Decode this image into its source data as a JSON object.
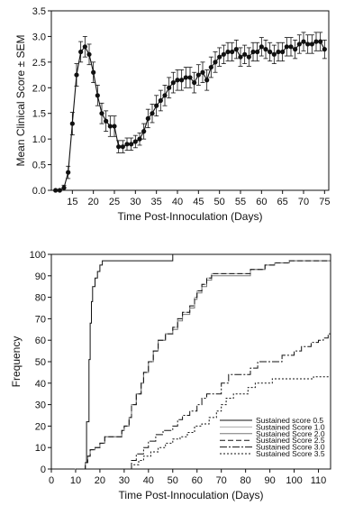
{
  "chart_data": [
    {
      "type": "line",
      "title": "",
      "xlabel": "Time Post-Innoculation (Days)",
      "ylabel": "Mean Clinical Score ± SEM",
      "xlim": [
        10,
        76
      ],
      "ylim": [
        0,
        3.5
      ],
      "xticks": [
        15,
        20,
        25,
        30,
        35,
        40,
        45,
        50,
        55,
        60,
        65,
        70,
        75
      ],
      "yticks": [
        0.0,
        0.5,
        1.0,
        1.5,
        2.0,
        2.5,
        3.0,
        3.5
      ],
      "ytick_labels": [
        "0.0",
        "0.5",
        "1.0",
        "1.5",
        "2.0",
        "2.5",
        "3.0",
        "3.5"
      ],
      "grid": false,
      "legend": "none",
      "series": [
        {
          "x": [
            11,
            12,
            13,
            14,
            15,
            16,
            17,
            18,
            19,
            20,
            21,
            22,
            23,
            24,
            25,
            26,
            27,
            28,
            29,
            30,
            31,
            32,
            33,
            34,
            35,
            36,
            37,
            38,
            39,
            40,
            41,
            42,
            43,
            44,
            45,
            46,
            47,
            48,
            49,
            50,
            51,
            52,
            53,
            54,
            55,
            56,
            57,
            58,
            59,
            60,
            61,
            62,
            63,
            64,
            65,
            66,
            67,
            68,
            69,
            70,
            71,
            72,
            73,
            74,
            75
          ],
          "y": [
            0.0,
            0.0,
            0.05,
            0.35,
            1.3,
            2.25,
            2.7,
            2.8,
            2.65,
            2.3,
            1.85,
            1.5,
            1.35,
            1.25,
            1.25,
            0.85,
            0.85,
            0.9,
            0.9,
            0.95,
            1.0,
            1.15,
            1.4,
            1.5,
            1.65,
            1.75,
            1.85,
            2.0,
            2.1,
            2.15,
            2.15,
            2.2,
            2.2,
            2.1,
            2.25,
            2.3,
            2.15,
            2.4,
            2.5,
            2.6,
            2.65,
            2.7,
            2.7,
            2.75,
            2.6,
            2.65,
            2.6,
            2.7,
            2.7,
            2.8,
            2.75,
            2.7,
            2.65,
            2.7,
            2.7,
            2.8,
            2.8,
            2.75,
            2.85,
            2.9,
            2.85,
            2.85,
            2.9,
            2.9,
            2.75
          ],
          "sem": [
            0.0,
            0.0,
            0.05,
            0.12,
            0.22,
            0.22,
            0.2,
            0.2,
            0.2,
            0.2,
            0.2,
            0.2,
            0.2,
            0.2,
            0.2,
            0.12,
            0.12,
            0.12,
            0.12,
            0.12,
            0.12,
            0.15,
            0.18,
            0.18,
            0.2,
            0.2,
            0.2,
            0.2,
            0.2,
            0.2,
            0.2,
            0.2,
            0.2,
            0.2,
            0.2,
            0.2,
            0.2,
            0.2,
            0.2,
            0.18,
            0.18,
            0.18,
            0.18,
            0.18,
            0.18,
            0.18,
            0.18,
            0.18,
            0.18,
            0.18,
            0.18,
            0.18,
            0.18,
            0.18,
            0.18,
            0.18,
            0.18,
            0.18,
            0.18,
            0.18,
            0.18,
            0.18,
            0.18,
            0.18,
            0.18
          ]
        }
      ]
    },
    {
      "type": "line",
      "title": "",
      "xlabel": "Time Post-Innoculation (Days)",
      "ylabel": "Frequency",
      "xlim": [
        0,
        115
      ],
      "ylim": [
        0,
        100
      ],
      "xticks": [
        0,
        10,
        20,
        30,
        40,
        50,
        60,
        70,
        80,
        90,
        100,
        110
      ],
      "yticks": [
        0,
        10,
        20,
        30,
        40,
        50,
        60,
        70,
        80,
        90,
        100
      ],
      "grid": false,
      "legend": "bottom-right",
      "series": [
        {
          "name": "Sustained score 0.5",
          "color": "#111111",
          "dash": "",
          "points": [
            [
              0,
              0
            ],
            [
              13,
              0
            ],
            [
              14,
              3
            ],
            [
              14.5,
              22
            ],
            [
              15,
              22
            ],
            [
              15.5,
              51
            ],
            [
              16,
              68
            ],
            [
              16.5,
              78
            ],
            [
              17,
              85
            ],
            [
              18,
              89
            ],
            [
              19,
              92
            ],
            [
              20,
              95
            ],
            [
              21,
              97
            ],
            [
              49,
              97
            ],
            [
              50,
              100
            ],
            [
              115,
              100
            ]
          ]
        },
        {
          "name": "Sustained Score 1.0",
          "color": "#aaaaaa",
          "dash": "",
          "points": [
            [
              0,
              0
            ],
            [
              13,
              0
            ],
            [
              14,
              3
            ],
            [
              15,
              6
            ],
            [
              16,
              9
            ],
            [
              18,
              10
            ],
            [
              20,
              12
            ],
            [
              22,
              15
            ],
            [
              27,
              15
            ],
            [
              29,
              18
            ],
            [
              30,
              20
            ],
            [
              32,
              24
            ],
            [
              33,
              30
            ],
            [
              35,
              35
            ],
            [
              37,
              40
            ],
            [
              38,
              45
            ],
            [
              40,
              50
            ],
            [
              42,
              55
            ],
            [
              44,
              60
            ],
            [
              47,
              63
            ],
            [
              50,
              66
            ],
            [
              52,
              70
            ],
            [
              54,
              73
            ],
            [
              57,
              76
            ],
            [
              59,
              80
            ],
            [
              60,
              83
            ],
            [
              62,
              86
            ],
            [
              64,
              89
            ],
            [
              66,
              91
            ],
            [
              80,
              91
            ],
            [
              82,
              93
            ],
            [
              88,
              95
            ],
            [
              92,
              96
            ],
            [
              98,
              97
            ],
            [
              115,
              97
            ]
          ]
        },
        {
          "name": "Sustained Score 2.0",
          "color": "#777777",
          "dash": "",
          "points": [
            [
              0,
              0
            ],
            [
              13,
              0
            ],
            [
              14,
              3
            ],
            [
              15,
              6
            ],
            [
              16,
              9
            ],
            [
              18,
              10
            ],
            [
              20,
              12
            ],
            [
              22,
              15
            ],
            [
              27,
              15
            ],
            [
              29,
              18
            ],
            [
              30,
              20
            ],
            [
              32,
              24
            ],
            [
              33,
              30
            ],
            [
              35,
              35
            ],
            [
              37,
              40
            ],
            [
              38,
              45
            ],
            [
              40,
              50
            ],
            [
              42,
              55
            ],
            [
              44,
              60
            ],
            [
              47,
              63
            ],
            [
              50,
              65
            ],
            [
              52,
              69
            ],
            [
              54,
              72
            ],
            [
              57,
              75
            ],
            [
              59,
              79
            ],
            [
              60,
              82
            ],
            [
              62,
              85
            ],
            [
              64,
              88
            ],
            [
              66,
              90
            ],
            [
              80,
              90
            ],
            [
              82,
              93
            ],
            [
              88,
              95
            ],
            [
              92,
              96
            ],
            [
              98,
              97
            ],
            [
              115,
              97
            ]
          ]
        },
        {
          "name": "Sustained Score 2.5",
          "color": "#111111",
          "dash": "6,3",
          "points": [
            [
              0,
              0
            ],
            [
              13,
              0
            ],
            [
              14,
              3
            ],
            [
              15,
              6
            ],
            [
              16,
              9
            ],
            [
              18,
              10
            ],
            [
              20,
              12
            ],
            [
              22,
              15
            ],
            [
              27,
              15
            ],
            [
              29,
              18
            ],
            [
              30,
              20
            ],
            [
              32,
              24
            ],
            [
              33,
              30
            ],
            [
              35,
              35
            ],
            [
              37,
              40
            ],
            [
              38,
              45
            ],
            [
              40,
              50
            ],
            [
              42,
              55
            ],
            [
              44,
              60
            ],
            [
              47,
              63
            ],
            [
              50,
              66
            ],
            [
              52,
              70
            ],
            [
              54,
              73
            ],
            [
              57,
              76
            ],
            [
              59,
              80
            ],
            [
              60,
              83
            ],
            [
              62,
              86
            ],
            [
              64,
              89
            ],
            [
              66,
              91
            ],
            [
              80,
              91
            ],
            [
              82,
              93
            ],
            [
              88,
              95
            ],
            [
              92,
              96
            ],
            [
              98,
              97
            ],
            [
              115,
              97
            ]
          ]
        },
        {
          "name": "Sustained Score 3.0",
          "color": "#111111",
          "dash": "8,2,2,2",
          "points": [
            [
              0,
              0
            ],
            [
              31,
              0
            ],
            [
              33,
              4
            ],
            [
              35,
              7
            ],
            [
              38,
              10
            ],
            [
              40,
              13
            ],
            [
              43,
              16
            ],
            [
              46,
              18
            ],
            [
              50,
              20
            ],
            [
              52,
              23
            ],
            [
              54,
              25
            ],
            [
              57,
              27
            ],
            [
              60,
              30
            ],
            [
              62,
              33
            ],
            [
              64,
              35
            ],
            [
              68,
              35
            ],
            [
              70,
              40
            ],
            [
              73,
              44
            ],
            [
              80,
              44
            ],
            [
              82,
              47
            ],
            [
              85,
              50
            ],
            [
              92,
              50
            ],
            [
              95,
              53
            ],
            [
              100,
              55
            ],
            [
              103,
              57
            ],
            [
              107,
              59
            ],
            [
              110,
              60
            ],
            [
              112,
              61
            ],
            [
              114,
              63
            ],
            [
              115,
              63
            ]
          ]
        },
        {
          "name": "Sustained Score 3.5",
          "color": "#111111",
          "dash": "2,2",
          "points": [
            [
              0,
              0
            ],
            [
              31,
              0
            ],
            [
              33,
              2
            ],
            [
              36,
              4
            ],
            [
              38,
              6
            ],
            [
              41,
              8
            ],
            [
              44,
              10
            ],
            [
              47,
              12
            ],
            [
              50,
              14
            ],
            [
              53,
              15
            ],
            [
              56,
              17
            ],
            [
              59,
              20
            ],
            [
              62,
              21
            ],
            [
              65,
              24
            ],
            [
              68,
              27
            ],
            [
              70,
              30
            ],
            [
              72,
              33
            ],
            [
              75,
              35
            ],
            [
              79,
              35
            ],
            [
              81,
              38
            ],
            [
              84,
              40
            ],
            [
              88,
              40
            ],
            [
              91,
              42
            ],
            [
              100,
              42
            ],
            [
              108,
              43
            ],
            [
              115,
              44
            ]
          ]
        }
      ]
    }
  ]
}
